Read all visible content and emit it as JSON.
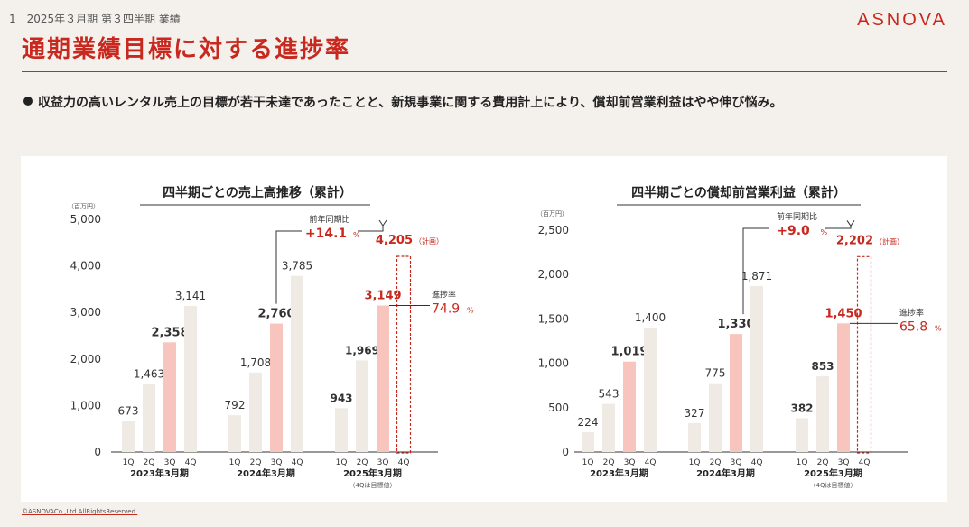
{
  "header": {
    "meta": "1　2025年３月期 第３四半期 業績",
    "logo": "ASNOVA"
  },
  "page_title": "通期業績目標に対する進捗率",
  "bullet": "収益力の高いレンタル売上の目標が若干未達であったことと、新規事業に関する費用計上により、償却前営業利益はやや伸び悩み。",
  "copyright": "©ASNOVACo.,Ltd.AllRightsReserved.",
  "colors": {
    "accent": "#c8281e",
    "bar_default": "#efebe4",
    "bar_q3": "#f7c5bd",
    "axis": "#333333"
  },
  "chart_data": [
    {
      "type": "bar",
      "title": "四半期ごとの売上高推移（累計）",
      "unit": "（百万円）",
      "ylim": [
        0,
        5000
      ],
      "yticks": [
        "0",
        "1,000",
        "2,000",
        "3,000",
        "4,000",
        "5,000"
      ],
      "quarters": [
        "1Q",
        "2Q",
        "3Q",
        "4Q"
      ],
      "groups": [
        {
          "label": "2023年3月期",
          "values": [
            673,
            1463,
            2358,
            3141
          ],
          "value_labels": [
            "673",
            "1,463",
            "2,358",
            "3,141"
          ]
        },
        {
          "label": "2024年3月期",
          "values": [
            792,
            1708,
            2760,
            3785
          ],
          "value_labels": [
            "792",
            "1,708",
            "2,760",
            "3,785"
          ]
        },
        {
          "label": "2025年3月期",
          "sublabel": "（4Qは目標値）",
          "values": [
            943,
            1969,
            3149,
            4205
          ],
          "value_labels": [
            "943",
            "1,969",
            "3,149",
            "4,205"
          ],
          "last_is_plan": true
        }
      ],
      "plan_tag": "（計画）",
      "yoy_label": "前年同期比",
      "yoy_value": "+14.1",
      "yoy_unit": "%",
      "progress_label": "進捗率",
      "progress_value": "74.9",
      "progress_unit": "%"
    },
    {
      "type": "bar",
      "title": "四半期ごとの償却前営業利益（累計）",
      "unit": "（百万円）",
      "ylim": [
        0,
        2500
      ],
      "yticks": [
        "0",
        "500",
        "1,000",
        "1,500",
        "2,000",
        "2,500"
      ],
      "quarters": [
        "1Q",
        "2Q",
        "3Q",
        "4Q"
      ],
      "groups": [
        {
          "label": "2023年3月期",
          "values": [
            224,
            543,
            1019,
            1400
          ],
          "value_labels": [
            "224",
            "543",
            "1,019",
            "1,400"
          ]
        },
        {
          "label": "2024年3月期",
          "values": [
            327,
            775,
            1330,
            1871
          ],
          "value_labels": [
            "327",
            "775",
            "1,330",
            "1,871"
          ]
        },
        {
          "label": "2025年3月期",
          "sublabel": "（4Qは目標値）",
          "values": [
            382,
            853,
            1450,
            2202
          ],
          "value_labels": [
            "382",
            "853",
            "1,450",
            "2,202"
          ],
          "last_is_plan": true
        }
      ],
      "plan_tag": "（計画）",
      "yoy_label": "前年同期比",
      "yoy_value": "+9.0",
      "yoy_unit": "%",
      "progress_label": "進捗率",
      "progress_value": "65.8",
      "progress_unit": "%"
    }
  ]
}
